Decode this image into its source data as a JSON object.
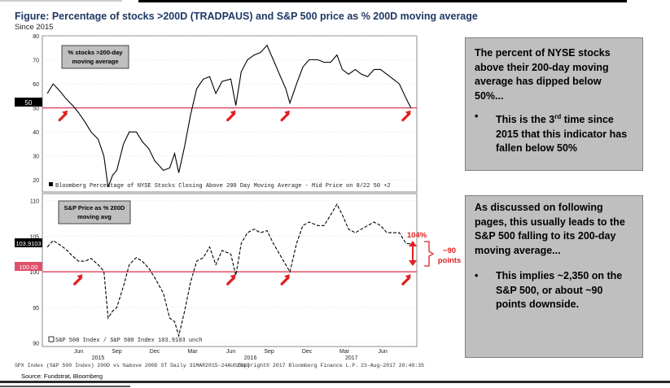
{
  "figure": {
    "title": "Figure: Percentage of stocks >200D (TRADPAUS) and S&P 500 price as % 200D moving average",
    "subtitle": "Since 2015"
  },
  "top_panel": {
    "label_line1": "% stocks >200-day",
    "label_line2": "moving average",
    "legend": "Bloomberg Percentage of NYSE Stocks Closing Above 200 Day Moving Average - Mid Price on 8/22 50  +2",
    "current_value_label": "50",
    "y_ticks": [
      "80",
      "70",
      "60",
      "50",
      "40",
      "30",
      "20"
    ]
  },
  "bottom_panel": {
    "label_line1": "S&P Price as % 200D",
    "label_line2": "moving avg",
    "legend": "S&P 500 Index / S&P 500 Index 103.9103  unch",
    "current_value_label": "103.9103",
    "ref_value_label": "100.00",
    "annot_104": "104%",
    "annot_90_line1": "~90",
    "annot_90_line2": "points",
    "y_ticks": [
      "105",
      "100",
      "95",
      "90"
    ],
    "y_tick_top": "110"
  },
  "x_axis": {
    "months": [
      "Jun",
      "Sep",
      "Dec",
      "Mar",
      "Jun",
      "Sep",
      "Dec",
      "Mar",
      "Jun"
    ],
    "years": [
      "2015",
      "2016",
      "2017"
    ]
  },
  "footer": {
    "bloomberg_line_left": "SPX Index (S&P 500 Index) 200D vs %above 200D ST  Daily 31MAR2015-24AUG2017",
    "bloomberg_line_mid": "Copyright© 2017 Bloomberg Finance L.P.",
    "bloomberg_line_right": "23-Aug-2017 20:40:35",
    "source": "Source: Fundstrat, Bloomberg"
  },
  "box1": {
    "lead": "The percent of NYSE stocks above their 200-day moving average has dipped below 50%...",
    "bullet_pre": "This is the 3",
    "bullet_sup": "rd",
    "bullet_post": " time since 2015 that this indicator has fallen below 50%"
  },
  "box2": {
    "lead": "As discussed on following pages, this usually leads to the S&P 500 falling to its 200-day moving average...",
    "bullet": "This implies ~2,350 on the S&P 500, or about ~90 points downside."
  },
  "colors": {
    "title": "#1f3864",
    "threshold_line": "#e0506a",
    "arrow": "#e02020",
    "annotation": "#e02020",
    "box_bg": "#bfbfbf"
  },
  "chart_data": [
    {
      "type": "line",
      "title": "% stocks >200-day moving average",
      "series": [
        {
          "name": "Bloomberg Percentage of NYSE Stocks Closing Above 200 Day Moving Average",
          "x": [
            "2015-04-01",
            "2015-04-15",
            "2015-05-01",
            "2015-05-15",
            "2015-06-01",
            "2015-06-15",
            "2015-07-01",
            "2015-07-15",
            "2015-08-01",
            "2015-08-15",
            "2015-08-25",
            "2015-09-05",
            "2015-09-15",
            "2015-10-01",
            "2015-10-15",
            "2015-11-01",
            "2015-11-15",
            "2015-12-01",
            "2015-12-15",
            "2016-01-05",
            "2016-01-20",
            "2016-02-01",
            "2016-02-11",
            "2016-02-25",
            "2016-03-10",
            "2016-03-25",
            "2016-04-10",
            "2016-04-25",
            "2016-05-10",
            "2016-05-25",
            "2016-06-15",
            "2016-06-27",
            "2016-07-10",
            "2016-07-25",
            "2016-08-10",
            "2016-08-25",
            "2016-09-10",
            "2016-09-25",
            "2016-10-10",
            "2016-10-25",
            "2016-11-04",
            "2016-11-20",
            "2016-12-05",
            "2016-12-20",
            "2017-01-10",
            "2017-01-25",
            "2017-02-10",
            "2017-02-25",
            "2017-03-10",
            "2017-03-25",
            "2017-04-10",
            "2017-04-25",
            "2017-05-10",
            "2017-05-25",
            "2017-06-10",
            "2017-06-25",
            "2017-07-10",
            "2017-07-25",
            "2017-08-10",
            "2017-08-22"
          ],
          "values": [
            56,
            60,
            57,
            54,
            51,
            48,
            44,
            40,
            37,
            30,
            17,
            22,
            24,
            35,
            40,
            40,
            36,
            33,
            28,
            24,
            25,
            31,
            23,
            34,
            47,
            58,
            62,
            63,
            56,
            61,
            62,
            51,
            65,
            70,
            72,
            73,
            76,
            70,
            64,
            58,
            52,
            60,
            67,
            70,
            70,
            69,
            69,
            72,
            66,
            64,
            66,
            64,
            63,
            66,
            66,
            64,
            62,
            60,
            54,
            50
          ]
        }
      ],
      "ylim": [
        15,
        80
      ],
      "reference_line": 50,
      "last_value": 50,
      "last_change": "+2"
    },
    {
      "type": "line",
      "title": "S&P Price as % 200D moving avg",
      "series": [
        {
          "name": "S&P 500 Index / S&P 500 Index",
          "x": [
            "2015-04-01",
            "2015-04-15",
            "2015-05-01",
            "2015-05-15",
            "2015-06-01",
            "2015-06-15",
            "2015-07-01",
            "2015-07-15",
            "2015-08-01",
            "2015-08-15",
            "2015-08-25",
            "2015-09-05",
            "2015-09-15",
            "2015-10-01",
            "2015-10-15",
            "2015-11-01",
            "2015-11-15",
            "2015-12-01",
            "2015-12-15",
            "2016-01-05",
            "2016-01-20",
            "2016-02-01",
            "2016-02-11",
            "2016-02-25",
            "2016-03-10",
            "2016-03-25",
            "2016-04-10",
            "2016-04-25",
            "2016-05-10",
            "2016-05-25",
            "2016-06-15",
            "2016-06-27",
            "2016-07-10",
            "2016-07-25",
            "2016-08-10",
            "2016-08-25",
            "2016-09-10",
            "2016-09-25",
            "2016-10-10",
            "2016-10-25",
            "2016-11-04",
            "2016-11-20",
            "2016-12-05",
            "2016-12-20",
            "2017-01-10",
            "2017-01-25",
            "2017-02-10",
            "2017-02-25",
            "2017-03-10",
            "2017-03-25",
            "2017-04-10",
            "2017-04-25",
            "2017-05-10",
            "2017-05-25",
            "2017-06-10",
            "2017-06-25",
            "2017-07-10",
            "2017-07-25",
            "2017-08-10",
            "2017-08-22"
          ],
          "values": [
            103.5,
            104.4,
            103.8,
            103.2,
            102.2,
            101.5,
            101.5,
            101.9,
            101.0,
            100.1,
            93.5,
            94.5,
            95.0,
            98.0,
            101.0,
            102.0,
            101.5,
            100.5,
            99.2,
            97.0,
            93.5,
            93.0,
            91.0,
            94.5,
            98.5,
            101.5,
            102.0,
            103.5,
            101.0,
            103.0,
            102.5,
            99.5,
            104.0,
            105.5,
            106.0,
            105.5,
            105.8,
            104.0,
            102.5,
            101.0,
            100.0,
            104.0,
            106.5,
            107.0,
            106.5,
            106.5,
            108.0,
            109.5,
            108.0,
            106.0,
            105.5,
            106.0,
            106.5,
            107.0,
            106.5,
            105.5,
            105.5,
            105.5,
            104.0,
            103.9103
          ]
        }
      ],
      "ylim": [
        89.5,
        111
      ],
      "reference_line": 100.0,
      "last_value": 103.9103
    }
  ]
}
